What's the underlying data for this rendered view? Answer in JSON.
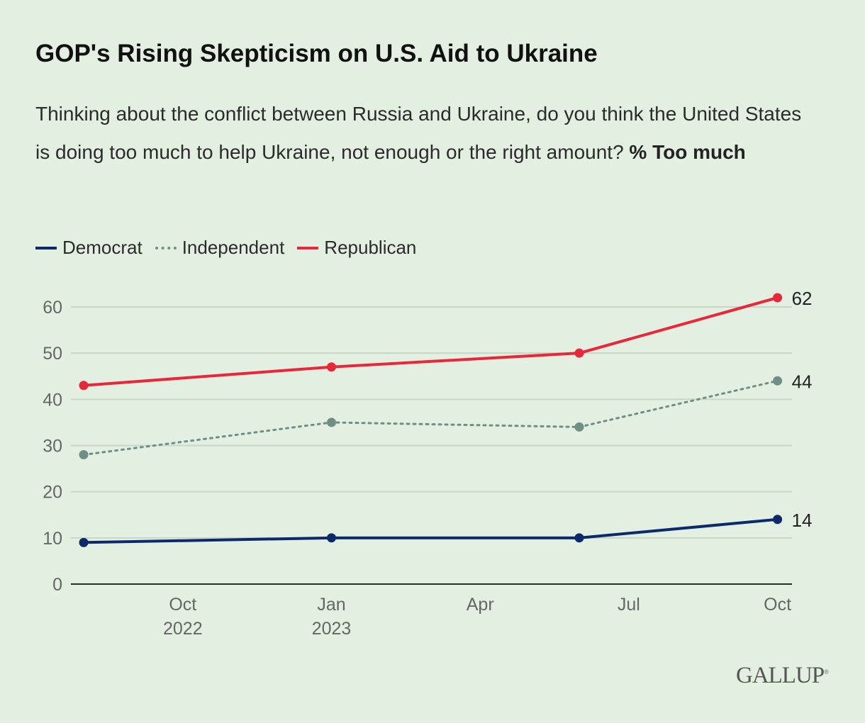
{
  "chart_data": {
    "type": "line",
    "title": "GOP's Rising Skepticism on U.S. Aid to Ukraine",
    "subtitle": "Thinking about the conflict between Russia and Ukraine, do you think the United States is doing too much to help Ukraine, not enough or the right amount?",
    "subtitle_emphasis": "% Too much",
    "x": [
      "2022-08",
      "2023-01",
      "2023-06",
      "2023-10"
    ],
    "series": [
      {
        "name": "Democrat",
        "values": [
          9,
          10,
          10,
          14
        ],
        "color": "#0b2a6b",
        "style": "solid",
        "end_label": "14"
      },
      {
        "name": "Independent",
        "values": [
          28,
          35,
          34,
          44
        ],
        "color": "#6e8f85",
        "style": "dotted",
        "end_label": "44"
      },
      {
        "name": "Republican",
        "values": [
          43,
          47,
          50,
          62
        ],
        "color": "#e8273a",
        "style": "solid",
        "end_label": "62"
      }
    ],
    "ylim": [
      0,
      60
    ],
    "yticks": [
      "0",
      "10",
      "20",
      "30",
      "40",
      "50",
      "60"
    ],
    "xticks": [
      {
        "month": "2022-10",
        "line1": "Oct",
        "line2": "2022"
      },
      {
        "month": "2023-01",
        "line1": "Jan",
        "line2": "2023"
      },
      {
        "month": "2023-04",
        "line1": "Apr",
        "line2": ""
      },
      {
        "month": "2023-07",
        "line1": "Jul",
        "line2": ""
      },
      {
        "month": "2023-10",
        "line1": "Oct",
        "line2": ""
      }
    ],
    "grid": true,
    "legend_position": "top-left"
  },
  "source_logo": "GALLUP"
}
